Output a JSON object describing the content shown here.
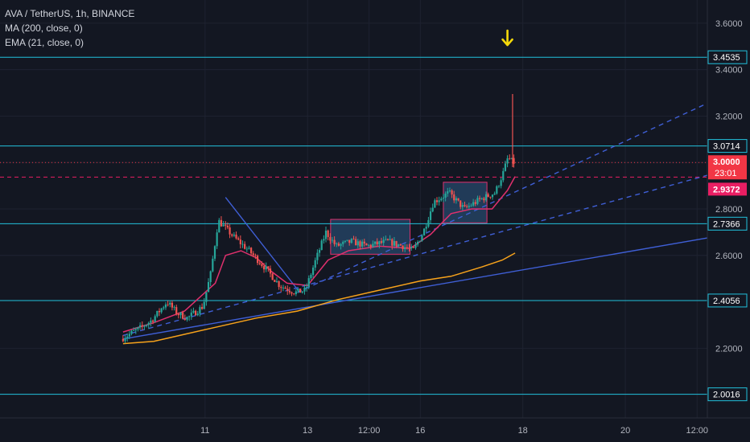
{
  "legend": {
    "title": "AVA / TetherUS, 1h, BINANCE",
    "ma": "MA (200, close, 0)",
    "ema": "EMA (21, close, 0)"
  },
  "colors": {
    "background": "#131722",
    "grid": "#1e2230",
    "axis_text": "#b2b5be",
    "up": "#26a69a",
    "down": "#ef5350",
    "horizontal_level": "#22c1dc",
    "trendline": "#3f5fd6",
    "ma200": "#f7a21b",
    "ema21": "#e0306d",
    "box_border": "#e0306d",
    "box_fill": "#2e5a85",
    "arrow": "#f5d90a",
    "price_label": "#f23645",
    "entry_label": "#e91e63"
  },
  "chart_data": {
    "type": "candlestick",
    "title": "AVA / TetherUS, 1h, BINANCE",
    "x_ticks": [
      "11",
      "13",
      "12:00",
      "16",
      "18",
      "20",
      "12:00"
    ],
    "x_range_days": [
      0,
      13.8
    ],
    "x_tick_positions_days": [
      4.0,
      6.0,
      7.2,
      8.2,
      10.2,
      12.2,
      13.6
    ],
    "ylim": [
      1.9,
      3.7
    ],
    "y_ticks": [
      "3.6000",
      "3.4000",
      "3.2000",
      "2.8000",
      "2.6000",
      "2.2000"
    ],
    "y_tick_values": [
      3.6,
      3.4,
      3.2,
      2.8,
      2.6,
      2.2
    ],
    "levels": [
      {
        "label": "3.4535",
        "value": 3.4535
      },
      {
        "label": "3.0714",
        "value": 3.0714
      },
      {
        "label": "2.7366",
        "value": 2.7366
      },
      {
        "label": "2.4056",
        "value": 2.4056
      },
      {
        "label": "2.0016",
        "value": 2.0016
      }
    ],
    "current_price": {
      "label": "3.0000",
      "countdown": "23:01",
      "value": 3.0
    },
    "entry_level": {
      "label": "2.9372",
      "value": 2.9372
    },
    "anchors": [
      [
        2.4,
        2.24
      ],
      [
        2.8,
        2.29
      ],
      [
        3.0,
        2.32
      ],
      [
        3.3,
        2.4
      ],
      [
        3.5,
        2.35
      ],
      [
        3.7,
        2.33
      ],
      [
        4.0,
        2.38
      ],
      [
        4.15,
        2.52
      ],
      [
        4.3,
        2.75
      ],
      [
        4.6,
        2.68
      ],
      [
        4.9,
        2.62
      ],
      [
        5.2,
        2.55
      ],
      [
        5.5,
        2.47
      ],
      [
        5.8,
        2.44
      ],
      [
        6.0,
        2.45
      ],
      [
        6.2,
        2.58
      ],
      [
        6.4,
        2.7
      ],
      [
        6.6,
        2.64
      ],
      [
        6.9,
        2.66
      ],
      [
        7.2,
        2.64
      ],
      [
        7.6,
        2.66
      ],
      [
        7.9,
        2.64
      ],
      [
        8.1,
        2.62
      ],
      [
        8.3,
        2.7
      ],
      [
        8.5,
        2.83
      ],
      [
        8.8,
        2.87
      ],
      [
        9.1,
        2.8
      ],
      [
        9.4,
        2.84
      ],
      [
        9.7,
        2.87
      ],
      [
        9.85,
        2.95
      ],
      [
        9.95,
        3.02
      ],
      [
        10.05,
        3.0
      ]
    ],
    "ema21_points": [
      [
        2.4,
        2.27
      ],
      [
        3.0,
        2.31
      ],
      [
        3.6,
        2.36
      ],
      [
        4.2,
        2.48
      ],
      [
        4.4,
        2.6
      ],
      [
        4.7,
        2.62
      ],
      [
        5.0,
        2.59
      ],
      [
        5.3,
        2.53
      ],
      [
        5.6,
        2.48
      ],
      [
        6.0,
        2.47
      ],
      [
        6.4,
        2.58
      ],
      [
        6.8,
        2.62
      ],
      [
        7.4,
        2.64
      ],
      [
        8.0,
        2.63
      ],
      [
        8.4,
        2.69
      ],
      [
        8.8,
        2.78
      ],
      [
        9.2,
        2.8
      ],
      [
        9.6,
        2.8
      ],
      [
        9.9,
        2.88
      ],
      [
        10.05,
        2.94
      ]
    ],
    "ma200_points": [
      [
        2.4,
        2.22
      ],
      [
        3.0,
        2.23
      ],
      [
        3.6,
        2.26
      ],
      [
        4.2,
        2.29
      ],
      [
        5.0,
        2.33
      ],
      [
        5.8,
        2.36
      ],
      [
        6.6,
        2.41
      ],
      [
        7.4,
        2.45
      ],
      [
        8.2,
        2.49
      ],
      [
        8.8,
        2.51
      ],
      [
        9.4,
        2.55
      ],
      [
        9.8,
        2.58
      ],
      [
        10.05,
        2.61
      ]
    ],
    "trendlines": [
      {
        "style": "solid",
        "x1": 2.4,
        "y1": 2.24,
        "x2": 13.8,
        "y2": 2.675
      },
      {
        "style": "solid",
        "x1": 4.4,
        "y1": 2.85,
        "x2": 5.85,
        "y2": 2.44
      },
      {
        "style": "dashed",
        "x1": 2.4,
        "y1": 2.255,
        "x2": 13.8,
        "y2": 2.945
      },
      {
        "style": "dashed",
        "x1": 5.8,
        "y1": 2.44,
        "x2": 13.8,
        "y2": 3.255
      }
    ],
    "boxes": [
      {
        "x1": 6.45,
        "x2": 8.0,
        "y1": 2.605,
        "y2": 2.755
      },
      {
        "x1": 8.65,
        "x2": 9.5,
        "y1": 2.74,
        "y2": 2.915
      }
    ],
    "spike": {
      "x": 10.0,
      "low": 2.98,
      "high": 3.295
    },
    "arrow_marker": {
      "x": 9.9,
      "y": 3.53
    }
  }
}
